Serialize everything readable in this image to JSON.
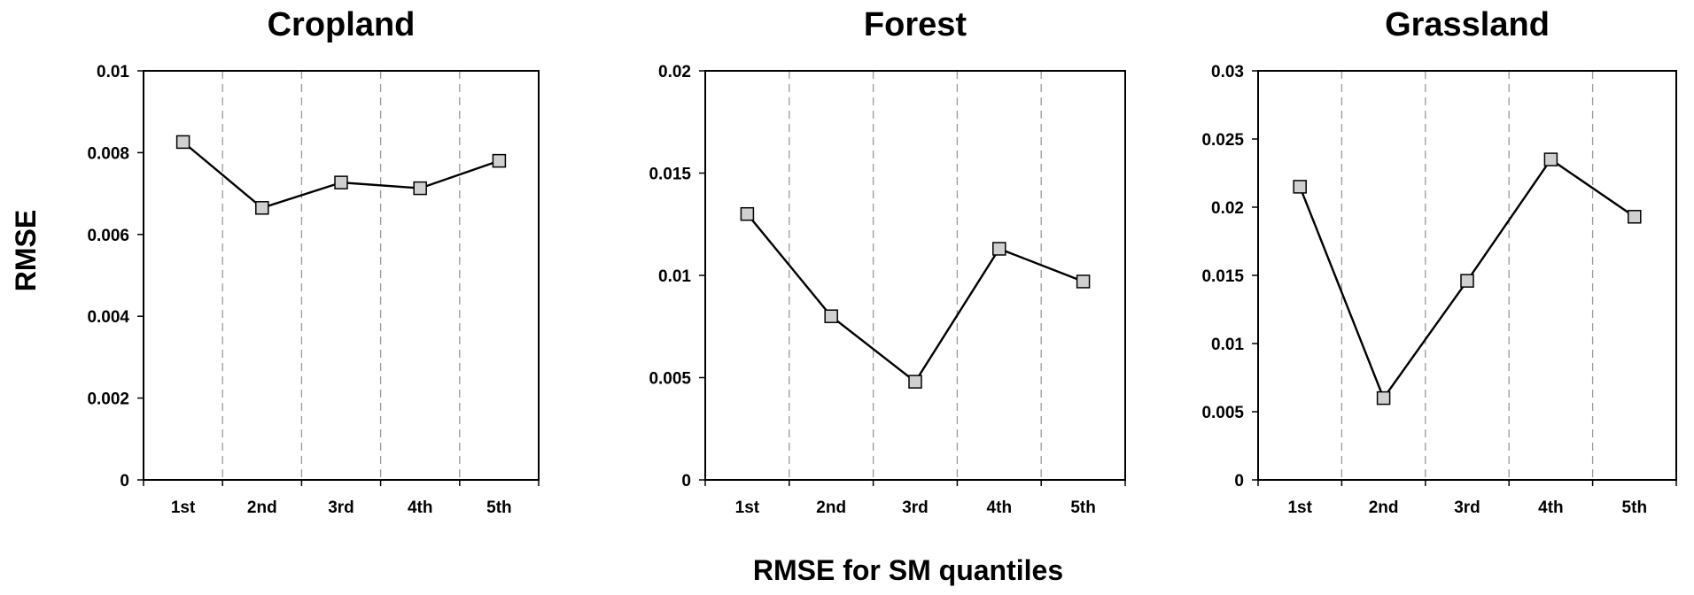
{
  "xlabel": "RMSE for SM quantiles",
  "ylabel": "RMSE",
  "chart_data": [
    {
      "type": "line",
      "title": "Cropland",
      "categories": [
        "1st",
        "2nd",
        "3rd",
        "4th",
        "5th"
      ],
      "values": [
        0.00826,
        0.00665,
        0.00727,
        0.00713,
        0.0078
      ],
      "ylim": [
        0,
        0.01
      ],
      "yticks": [
        "0",
        "0.002",
        "0.004",
        "0.006",
        "0.008",
        "0.01"
      ],
      "grid": "vertical dashed"
    },
    {
      "type": "line",
      "title": "Forest",
      "categories": [
        "1st",
        "2nd",
        "3rd",
        "4th",
        "5th"
      ],
      "values": [
        0.013,
        0.008,
        0.0048,
        0.0113,
        0.0097
      ],
      "ylim": [
        0,
        0.02
      ],
      "yticks": [
        "0",
        "0.005",
        "0.01",
        "0.015",
        "0.02"
      ],
      "grid": "vertical dashed"
    },
    {
      "type": "line",
      "title": "Grassland",
      "categories": [
        "1st",
        "2nd",
        "3rd",
        "4th",
        "5th"
      ],
      "values": [
        0.0215,
        0.006,
        0.0146,
        0.0235,
        0.0193
      ],
      "ylim": [
        0,
        0.03
      ],
      "yticks": [
        "0",
        "0.005",
        "0.01",
        "0.015",
        "0.02",
        "0.025",
        "0.03"
      ],
      "grid": "vertical dashed"
    }
  ]
}
